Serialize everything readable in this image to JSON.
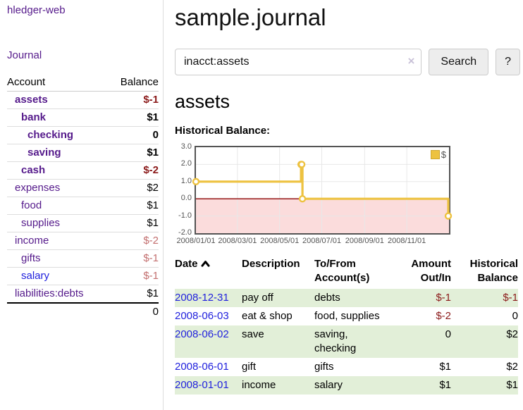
{
  "app": {
    "title": "hledger-web"
  },
  "sidebar": {
    "journal_label": "Journal",
    "accounts": {
      "header_account": "Account",
      "header_balance": "Balance",
      "rows": [
        {
          "name": "assets",
          "balance": "$-1"
        },
        {
          "name": "bank",
          "balance": "$1"
        },
        {
          "name": "checking",
          "balance": "0"
        },
        {
          "name": "saving",
          "balance": "$1"
        },
        {
          "name": "cash",
          "balance": "$-2"
        },
        {
          "name": "expenses",
          "balance": "$2"
        },
        {
          "name": "food",
          "balance": "$1"
        },
        {
          "name": "supplies",
          "balance": "$1"
        },
        {
          "name": "income",
          "balance": "$-2"
        },
        {
          "name": "gifts",
          "balance": "$-1"
        },
        {
          "name": "salary",
          "balance": "$-1"
        },
        {
          "name": "liabilities:debts",
          "balance": "$1"
        }
      ],
      "total_balance": "0"
    }
  },
  "main": {
    "title": "sample.journal",
    "search": {
      "value": "inacct:assets",
      "clear_icon": "×",
      "button_label": "Search",
      "help_label": "?"
    },
    "account_heading": "assets",
    "register": {
      "headers": {
        "date": "Date",
        "description": "Description",
        "accounts": "To/From Account(s)",
        "amount": "Amount Out/In",
        "balance": "Historical Balance"
      },
      "rows": [
        {
          "date": "2008-12-31",
          "description": "pay off",
          "accounts": "debts",
          "amount": "$-1",
          "balance": "$-1"
        },
        {
          "date": "2008-06-03",
          "description": "eat & shop",
          "accounts": "food, supplies",
          "amount": "$-2",
          "balance": "0"
        },
        {
          "date": "2008-06-02",
          "description": "save",
          "accounts": "saving, checking",
          "amount": "0",
          "balance": "$2"
        },
        {
          "date": "2008-06-01",
          "description": "gift",
          "accounts": "gifts",
          "amount": "$1",
          "balance": "$2"
        },
        {
          "date": "2008-01-01",
          "description": "income",
          "accounts": "salary",
          "amount": "$1",
          "balance": "$1"
        }
      ]
    }
  },
  "chart_data": {
    "type": "line",
    "title": "Historical Balance:",
    "legend_label": "$",
    "step": true,
    "ylim": [
      -2,
      3
    ],
    "xlim_days": [
      0,
      366
    ],
    "points": [
      {
        "date": "2008-01-01",
        "day": 0,
        "value": 1
      },
      {
        "date": "2008-06-01",
        "day": 152,
        "value": 2
      },
      {
        "date": "2008-06-02",
        "day": 153,
        "value": 2
      },
      {
        "date": "2008-06-03",
        "day": 154,
        "value": 0
      },
      {
        "date": "2008-12-31",
        "day": 365,
        "value": -1
      }
    ],
    "x_ticks": [
      {
        "label": "2008/01/01",
        "day": 0
      },
      {
        "label": "2008/03/01",
        "day": 60
      },
      {
        "label": "2008/05/01",
        "day": 121
      },
      {
        "label": "2008/07/01",
        "day": 182
      },
      {
        "label": "2008/09/01",
        "day": 244
      },
      {
        "label": "2008/11/01",
        "day": 305
      }
    ],
    "y_ticks": [
      {
        "label": "3.0",
        "value": 3
      },
      {
        "label": "2.0",
        "value": 2
      },
      {
        "label": "1.0",
        "value": 1
      },
      {
        "label": "0.0",
        "value": 0
      },
      {
        "label": "-1.0",
        "value": -1
      },
      {
        "label": "-2.0",
        "value": -2
      }
    ],
    "colors": {
      "line": "#edc240",
      "marker_fill": "#ffffff",
      "negative_region_fill": "#fbdcdc",
      "zero_line": "#8b0000",
      "grid": "#e8e8e8",
      "axis_text": "#545454"
    }
  }
}
